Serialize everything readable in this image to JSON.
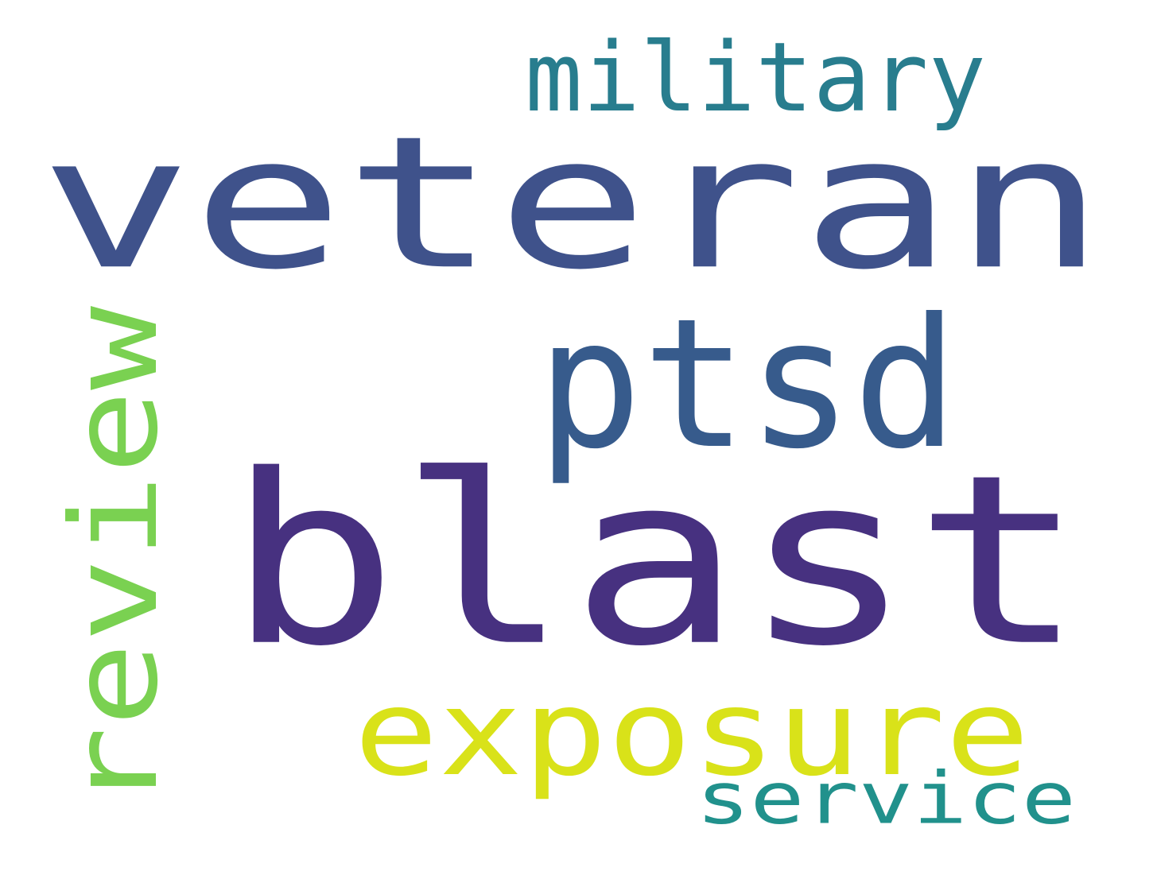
{
  "words": [
    {
      "key": "veteran",
      "text": "veteran",
      "color": "#3f528b",
      "orientation": "horizontal"
    },
    {
      "key": "blast",
      "text": "blast",
      "color": "#473180",
      "orientation": "horizontal"
    },
    {
      "key": "ptsd",
      "text": "ptsd",
      "color": "#375b8c",
      "orientation": "horizontal"
    },
    {
      "key": "military",
      "text": "military",
      "color": "#287d8e",
      "orientation": "horizontal"
    },
    {
      "key": "review",
      "text": "review",
      "color": "#7ad151",
      "orientation": "vertical"
    },
    {
      "key": "exposure",
      "text": "exposure",
      "color": "#d9e219",
      "orientation": "horizontal"
    },
    {
      "key": "service",
      "text": "service",
      "color": "#21918c",
      "orientation": "horizontal"
    }
  ]
}
